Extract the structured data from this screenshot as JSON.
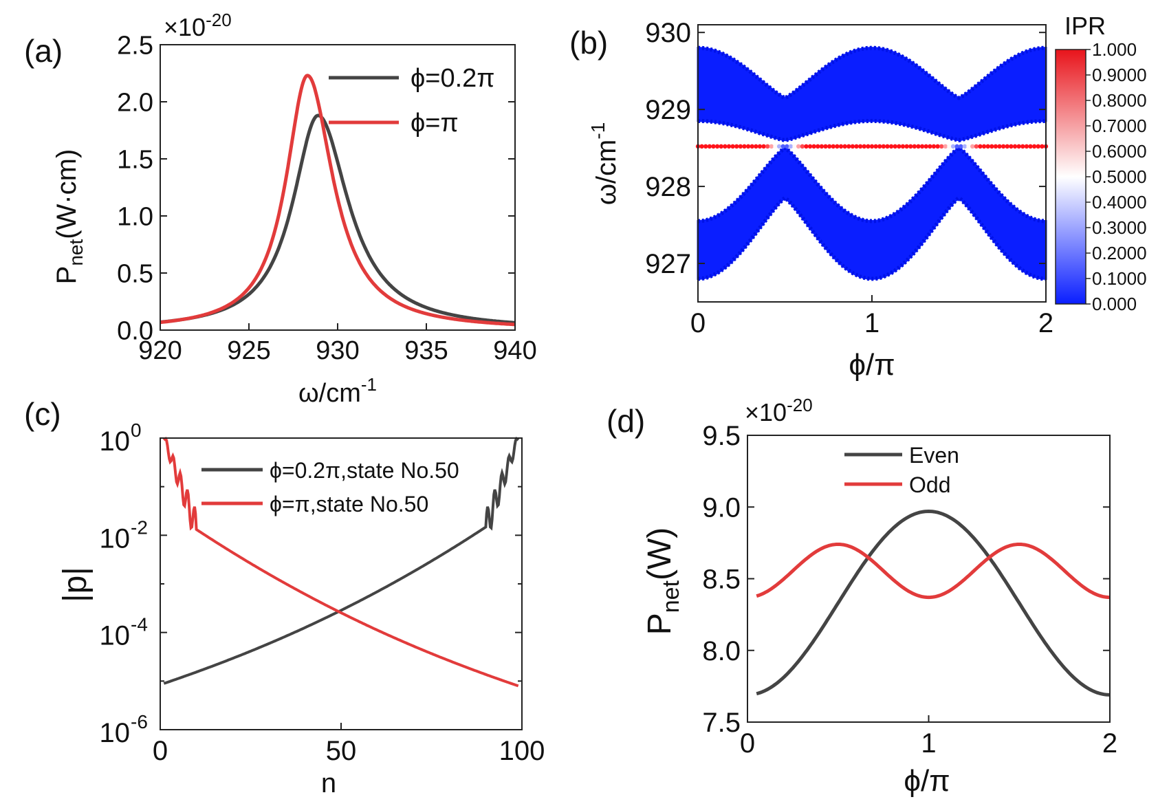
{
  "colors": {
    "even": "#444444",
    "odd": "#e23b3b",
    "band": "#0a1eff",
    "ipr_low": "#0a1eff",
    "ipr_mid": "#ffffff",
    "ipr_high": "#e8141b"
  },
  "chart_data": [
    {
      "id": "a",
      "panel_label": "(a)",
      "type": "line",
      "xlabel": "ω/cm",
      "xlabel_sup": "-1",
      "ylabel": "P",
      "ylabel_sub": "net",
      "ylabel_rest": "(W·cm)",
      "multiplier": "×10",
      "multiplier_exp": "-20",
      "xlim": [
        920,
        940
      ],
      "ylim": [
        0,
        2.5
      ],
      "xticks": [
        "920",
        "925",
        "930",
        "935",
        "940"
      ],
      "yticks": [
        "0.0",
        "0.5",
        "1.0",
        "1.5",
        "2.0",
        "2.5"
      ],
      "legend_position": "top-right",
      "series": [
        {
          "name": "ϕ=0.2π",
          "color": "#444444",
          "peak_x": 928.9,
          "peak_y": 1.88,
          "width": 1.9
        },
        {
          "name": "ϕ=π",
          "color": "#e23b3b",
          "peak_x": 928.3,
          "peak_y": 2.23,
          "width": 1.6
        }
      ]
    },
    {
      "id": "b",
      "panel_label": "(b)",
      "type": "band-scatter",
      "xlabel": "ϕ/π",
      "ylabel": "ω/cm",
      "ylabel_sup": "-1",
      "xlim": [
        0,
        2
      ],
      "ylim": [
        926.5,
        930.1
      ],
      "xticks": [
        "0",
        "1",
        "2"
      ],
      "yticks": [
        "927",
        "928",
        "929",
        "930"
      ],
      "upper_band": {
        "top_at_0": 929.8,
        "bottom_at_0": 928.85,
        "top_at_0_5": 929.15,
        "bottom_at_0_5": 928.6,
        "top_at_1": 929.8,
        "bottom_at_1": 929.1
      },
      "lower_band": {
        "top_at_0": 927.55,
        "bottom_at_0": 926.8,
        "top_at_0_5": 928.5,
        "bottom_at_0_5": 927.85,
        "top_at_1": 927.55,
        "bottom_at_1": 926.8
      },
      "edge_state": {
        "omega": 928.52,
        "ipr": 1.0,
        "crossings": [
          0.5,
          1.5
        ]
      },
      "colorbar": {
        "title": "IPR",
        "ticks": [
          "1.000",
          "0.9000",
          "0.8000",
          "0.7000",
          "0.6000",
          "0.5000",
          "0.4000",
          "0.3000",
          "0.2000",
          "0.1000",
          "0.000"
        ]
      }
    },
    {
      "id": "c",
      "panel_label": "(c)",
      "type": "line-log",
      "xlabel": "n",
      "ylabel": "|p|",
      "xlim": [
        0,
        100
      ],
      "ylim_exp": [
        -6,
        0
      ],
      "xticks": [
        "0",
        "50",
        "100"
      ],
      "yticks": [
        {
          "base": "10",
          "exp": "0"
        },
        {
          "base": "10",
          "exp": "-2"
        },
        {
          "base": "10",
          "exp": "-4"
        },
        {
          "base": "10",
          "exp": "-6"
        }
      ],
      "legend_position": "top-center",
      "series": [
        {
          "name": "ϕ=0.2π,state No.50",
          "color": "#444444",
          "log10_start": -5.05,
          "log10_end": 0.0
        },
        {
          "name": "ϕ=π,state No.50",
          "color": "#e23b3b",
          "log10_start": 0.0,
          "log10_end": -5.1
        }
      ]
    },
    {
      "id": "d",
      "panel_label": "(d)",
      "type": "line",
      "xlabel": "ϕ/π",
      "ylabel": "P",
      "ylabel_sub": "net",
      "ylabel_rest": "(W)",
      "multiplier": "×10",
      "multiplier_exp": "-20",
      "xlim": [
        0,
        2
      ],
      "ylim": [
        7.5,
        9.5
      ],
      "xticks": [
        "0",
        "1",
        "2"
      ],
      "yticks": [
        "7.5",
        "8.0",
        "8.5",
        "9.0",
        "9.5"
      ],
      "legend_position": "top-center",
      "series": [
        {
          "name": "Even",
          "color": "#444444",
          "mean": 8.33,
          "amplitude": -0.64,
          "period_pi": 2,
          "x_start": 0.05,
          "x_end": 2.0
        },
        {
          "name": "Odd",
          "color": "#e23b3b",
          "mean": 8.555,
          "amplitude": -0.185,
          "period_pi": 1,
          "x_start": 0.05,
          "x_end": 2.0
        }
      ]
    }
  ]
}
